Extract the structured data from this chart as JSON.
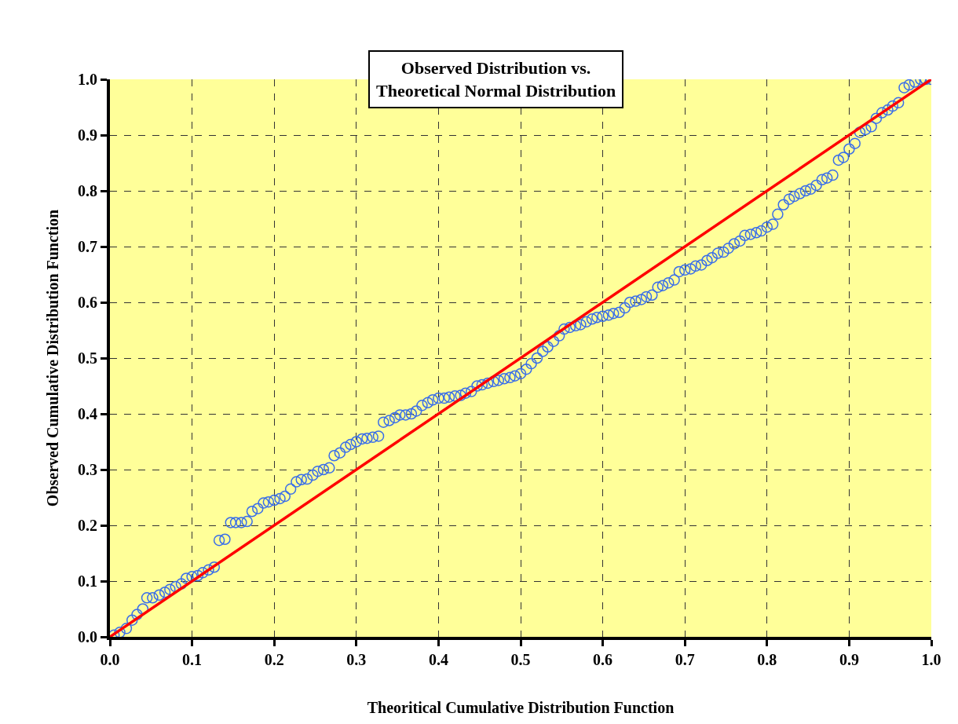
{
  "chart_data": {
    "type": "scatter",
    "title": "Observed Distribution vs.\nTheoretical Normal Distribution",
    "xlabel": "Theoritical Cumulative Distribution Function",
    "ylabel": "Observed Cumulative Distribution Function",
    "xlim": [
      0,
      1
    ],
    "ylim": [
      0,
      1
    ],
    "xticks": [
      {
        "value": 0,
        "label": "0.0"
      },
      0.1,
      0.2,
      0.3,
      0.4,
      0.5,
      0.6,
      0.7,
      0.8,
      0.9,
      {
        "value": 1,
        "label": "1.0"
      }
    ],
    "yticks": [
      {
        "value": 0,
        "label": "0.0"
      },
      0.1,
      0.2,
      0.3,
      0.4,
      0.5,
      0.6,
      0.7,
      0.8,
      0.9,
      {
        "value": 1,
        "label": "1.0"
      }
    ],
    "grid": true,
    "series": [
      {
        "marker": "circle",
        "color": "#3a6ee8",
        "x": [
          0.005,
          0.012,
          0.02,
          0.027,
          0.033,
          0.04,
          0.045,
          0.052,
          0.06,
          0.067,
          0.073,
          0.08,
          0.087,
          0.093,
          0.1,
          0.107,
          0.113,
          0.12,
          0.127,
          0.133,
          0.14,
          0.147,
          0.153,
          0.16,
          0.167,
          0.173,
          0.18,
          0.187,
          0.193,
          0.2,
          0.207,
          0.213,
          0.22,
          0.227,
          0.233,
          0.24,
          0.247,
          0.253,
          0.26,
          0.267,
          0.273,
          0.28,
          0.287,
          0.293,
          0.3,
          0.307,
          0.313,
          0.32,
          0.327,
          0.333,
          0.34,
          0.347,
          0.353,
          0.36,
          0.367,
          0.373,
          0.38,
          0.387,
          0.393,
          0.4,
          0.407,
          0.413,
          0.42,
          0.427,
          0.433,
          0.44,
          0.447,
          0.453,
          0.46,
          0.467,
          0.473,
          0.48,
          0.487,
          0.493,
          0.5,
          0.507,
          0.513,
          0.52,
          0.527,
          0.533,
          0.54,
          0.547,
          0.553,
          0.56,
          0.567,
          0.573,
          0.58,
          0.587,
          0.593,
          0.6,
          0.607,
          0.613,
          0.62,
          0.627,
          0.633,
          0.64,
          0.647,
          0.653,
          0.66,
          0.667,
          0.673,
          0.68,
          0.687,
          0.693,
          0.7,
          0.707,
          0.713,
          0.72,
          0.727,
          0.733,
          0.74,
          0.747,
          0.753,
          0.76,
          0.767,
          0.773,
          0.78,
          0.787,
          0.793,
          0.8,
          0.807,
          0.813,
          0.82,
          0.827,
          0.833,
          0.84,
          0.847,
          0.853,
          0.86,
          0.867,
          0.873,
          0.88,
          0.887,
          0.893,
          0.9,
          0.907,
          0.913,
          0.92,
          0.927,
          0.933,
          0.94,
          0.947,
          0.953,
          0.96,
          0.967,
          0.973,
          0.98,
          0.987,
          0.993,
          1.0
        ],
        "values": [
          0.003,
          0.008,
          0.015,
          0.03,
          0.04,
          0.05,
          0.07,
          0.07,
          0.075,
          0.08,
          0.085,
          0.09,
          0.095,
          0.105,
          0.108,
          0.11,
          0.115,
          0.12,
          0.125,
          0.173,
          0.175,
          0.205,
          0.205,
          0.205,
          0.207,
          0.225,
          0.23,
          0.24,
          0.242,
          0.245,
          0.248,
          0.252,
          0.265,
          0.278,
          0.282,
          0.283,
          0.29,
          0.297,
          0.3,
          0.303,
          0.325,
          0.33,
          0.34,
          0.345,
          0.35,
          0.355,
          0.356,
          0.358,
          0.36,
          0.385,
          0.388,
          0.393,
          0.398,
          0.398,
          0.4,
          0.405,
          0.415,
          0.42,
          0.425,
          0.428,
          0.428,
          0.43,
          0.432,
          0.433,
          0.437,
          0.44,
          0.45,
          0.452,
          0.455,
          0.458,
          0.46,
          0.463,
          0.465,
          0.468,
          0.472,
          0.48,
          0.49,
          0.5,
          0.512,
          0.52,
          0.53,
          0.54,
          0.552,
          0.555,
          0.558,
          0.56,
          0.565,
          0.57,
          0.573,
          0.575,
          0.577,
          0.58,
          0.582,
          0.59,
          0.6,
          0.602,
          0.605,
          0.61,
          0.613,
          0.627,
          0.63,
          0.635,
          0.64,
          0.655,
          0.658,
          0.66,
          0.665,
          0.667,
          0.675,
          0.68,
          0.688,
          0.69,
          0.697,
          0.705,
          0.71,
          0.72,
          0.722,
          0.725,
          0.728,
          0.735,
          0.74,
          0.758,
          0.775,
          0.785,
          0.79,
          0.795,
          0.8,
          0.803,
          0.81,
          0.82,
          0.823,
          0.828,
          0.855,
          0.86,
          0.875,
          0.885,
          0.905,
          0.91,
          0.915,
          0.93,
          0.94,
          0.945,
          0.952,
          0.958,
          0.985,
          0.99,
          0.995,
          1.0,
          1.0,
          1.0
        ]
      },
      {
        "type": "line",
        "marker": "none",
        "color": "#ff0000",
        "x": [
          0,
          1
        ],
        "values": [
          0,
          1
        ]
      }
    ]
  }
}
